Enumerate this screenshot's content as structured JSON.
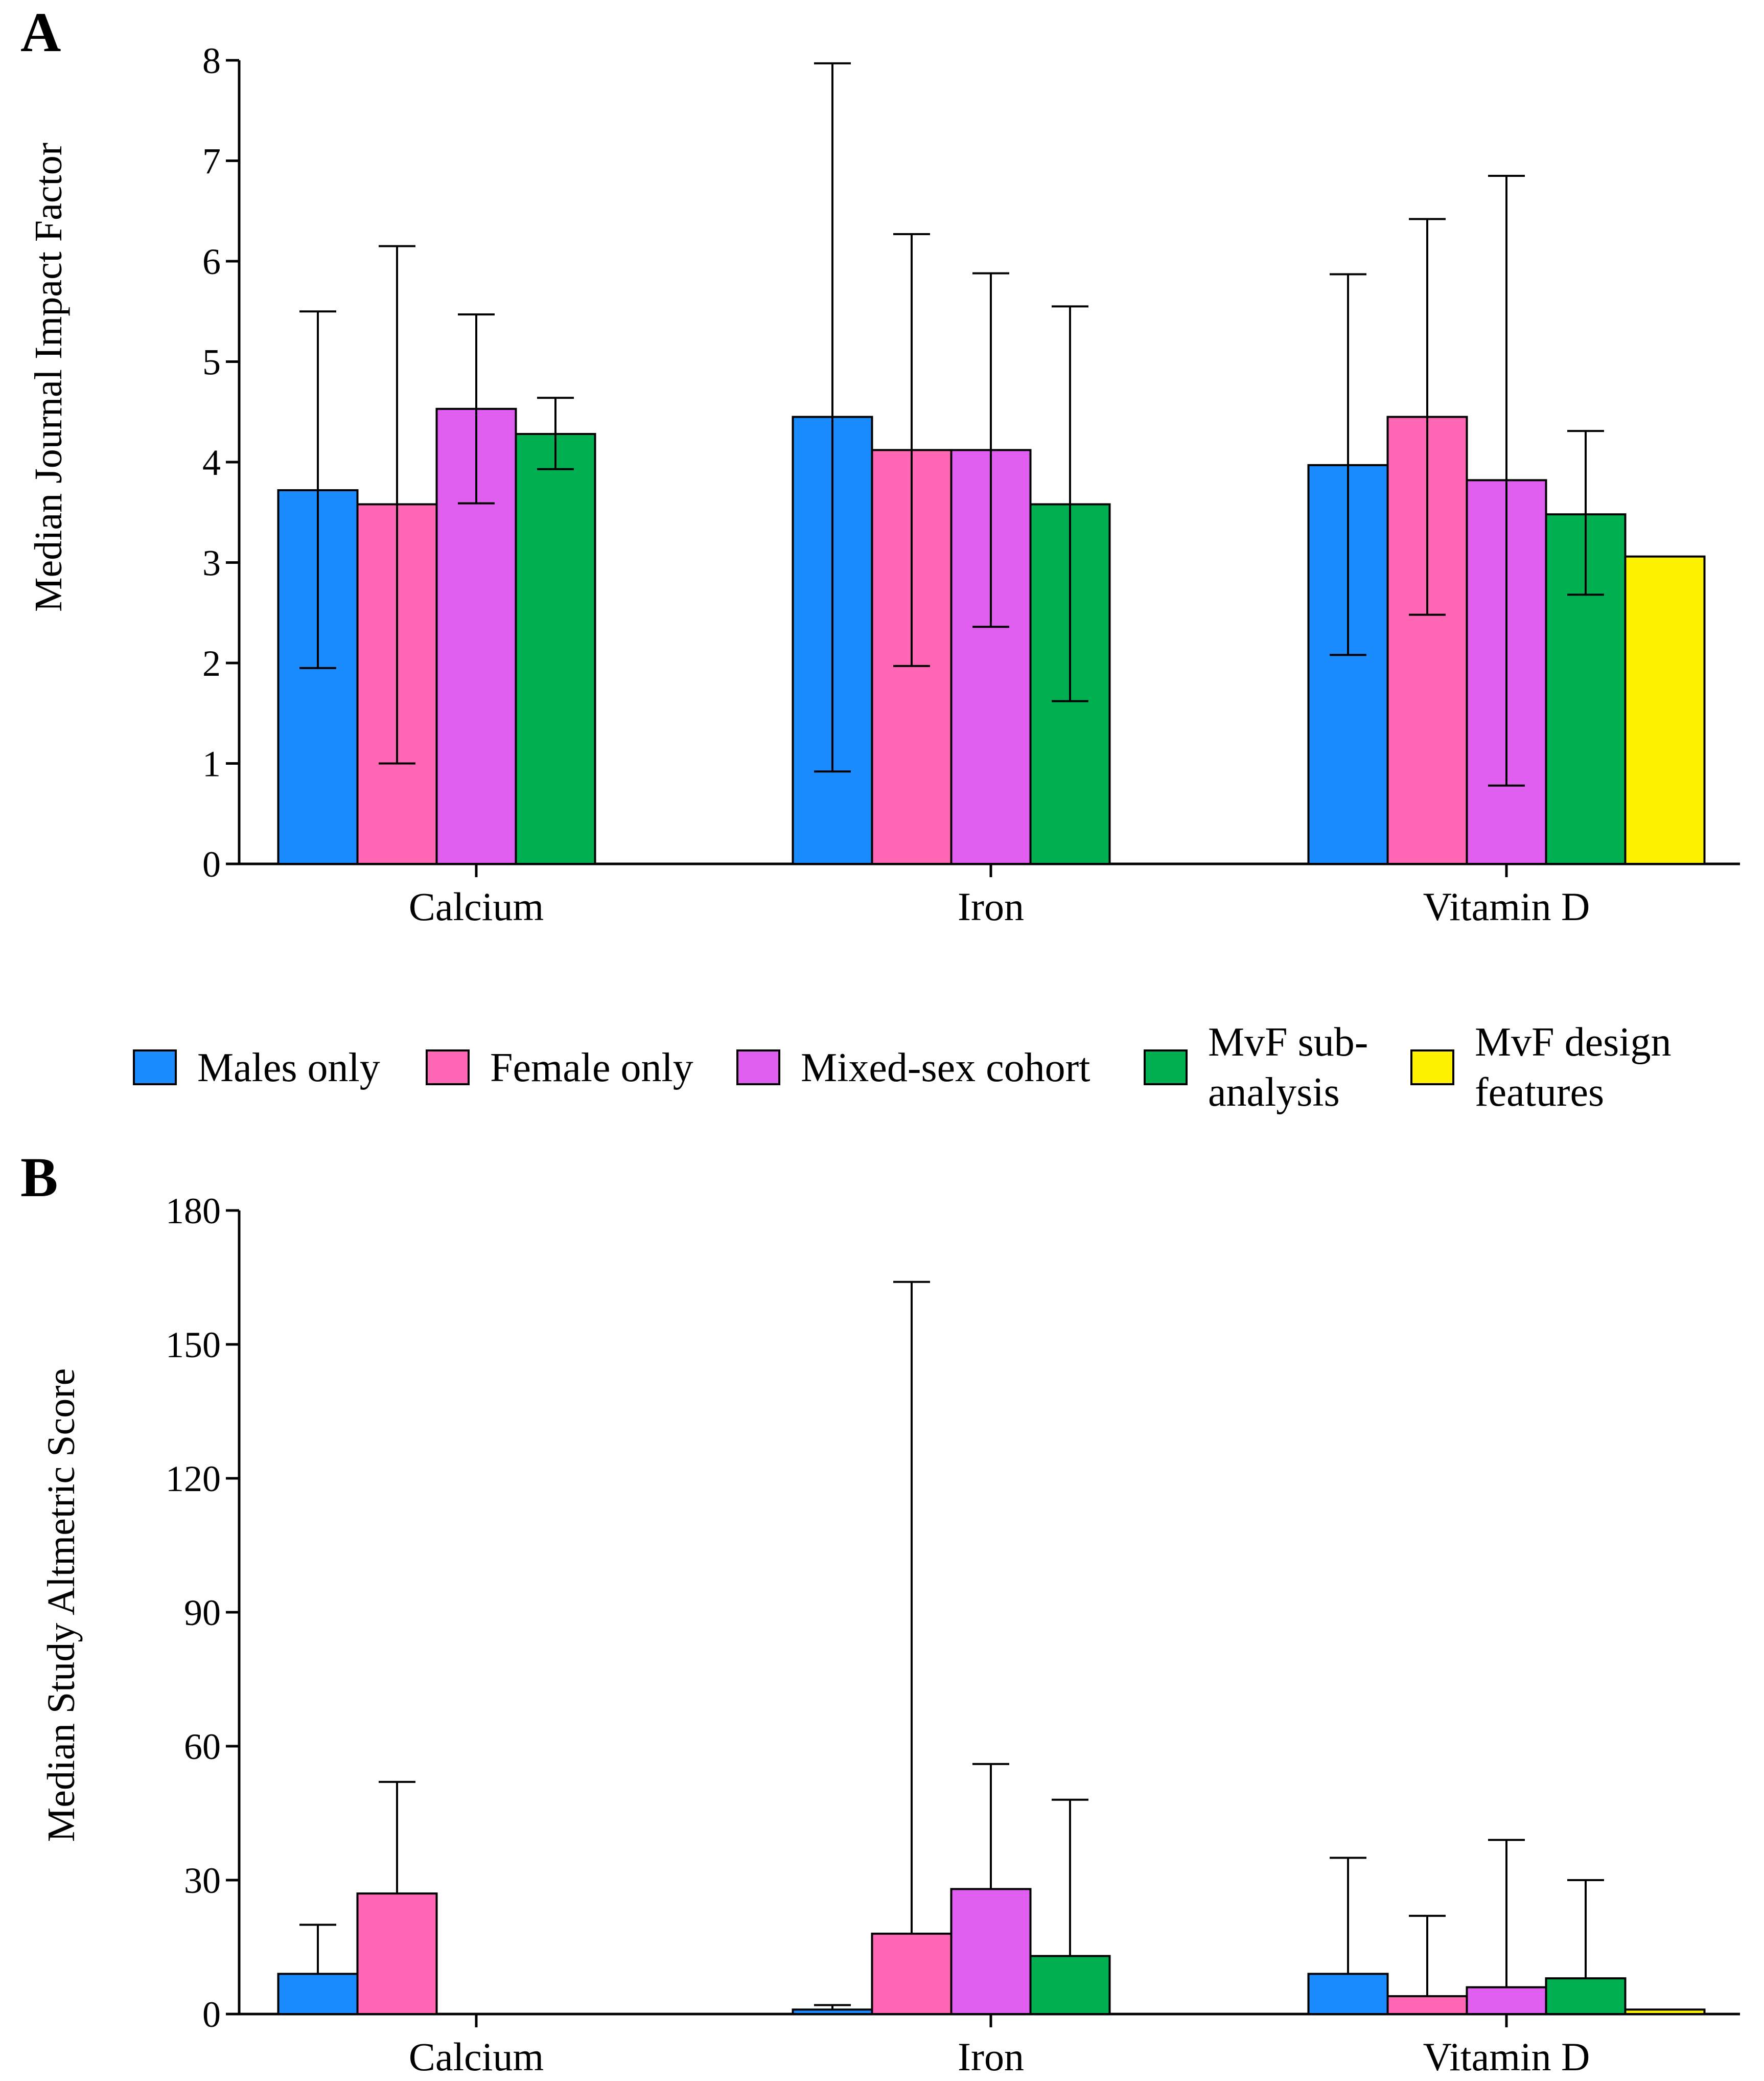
{
  "legend": [
    {
      "lines": [
        "Males only"
      ],
      "color": "#1a8cff"
    },
    {
      "lines": [
        "Female only"
      ],
      "color": "#ff66b3"
    },
    {
      "lines": [
        "Mixed-sex cohort"
      ],
      "color": "#e05ef0"
    },
    {
      "lines": [
        "MvF sub-",
        "analysis"
      ],
      "color": "#00b050"
    },
    {
      "lines": [
        "MvF design",
        "features"
      ],
      "color": "#fff200"
    }
  ],
  "chart_data": [
    {
      "type": "bar",
      "panel": "A",
      "title": "",
      "xlabel": "",
      "ylabel": "Median Journal Impact Factor",
      "ylim": [
        0,
        8
      ],
      "yticks": [
        0,
        1,
        2,
        3,
        4,
        5,
        6,
        7,
        8
      ],
      "categories": [
        "Calcium",
        "Iron",
        "Vitamin D"
      ],
      "series": [
        {
          "name": "Males only",
          "values": [
            3.72,
            4.45,
            3.97
          ],
          "err_low": [
            1.95,
            0.92,
            2.08
          ],
          "err_high": [
            5.5,
            7.97,
            5.87
          ]
        },
        {
          "name": "Female only",
          "values": [
            3.58,
            4.12,
            4.45
          ],
          "err_low": [
            1.0,
            1.97,
            2.48
          ],
          "err_high": [
            6.15,
            6.27,
            6.42
          ]
        },
        {
          "name": "Mixed-sex cohort",
          "values": [
            4.53,
            4.12,
            3.82
          ],
          "err_low": [
            3.59,
            2.36,
            0.78
          ],
          "err_high": [
            5.47,
            5.88,
            6.85
          ]
        },
        {
          "name": "MvF sub-analysis",
          "values": [
            4.28,
            3.58,
            3.48
          ],
          "err_low": [
            3.93,
            1.62,
            2.68
          ],
          "err_high": [
            4.64,
            5.55,
            4.31
          ]
        },
        {
          "name": "MvF design features",
          "values": [
            null,
            null,
            3.06
          ],
          "err_low": [
            null,
            null,
            null
          ],
          "err_high": [
            null,
            null,
            null
          ]
        }
      ]
    },
    {
      "type": "bar",
      "panel": "B",
      "title": "",
      "xlabel": "",
      "ylabel": "Median Study Altmetric Score",
      "ylim": [
        0,
        180
      ],
      "yticks": [
        0,
        30,
        60,
        90,
        120,
        150,
        180
      ],
      "categories": [
        "Calcium",
        "Iron",
        "Vitamin D"
      ],
      "series": [
        {
          "name": "Males only",
          "values": [
            9,
            1,
            9
          ],
          "err_low": [
            null,
            null,
            null
          ],
          "err_high": [
            20,
            2,
            35
          ]
        },
        {
          "name": "Female only",
          "values": [
            27,
            18,
            4
          ],
          "err_low": [
            null,
            null,
            null
          ],
          "err_high": [
            52,
            164,
            22
          ]
        },
        {
          "name": "Mixed-sex cohort",
          "values": [
            null,
            28,
            6
          ],
          "err_low": [
            null,
            null,
            null
          ],
          "err_high": [
            null,
            56,
            39
          ]
        },
        {
          "name": "MvF sub-analysis",
          "values": [
            null,
            13,
            8
          ],
          "err_low": [
            null,
            null,
            null
          ],
          "err_high": [
            null,
            48,
            30
          ]
        },
        {
          "name": "MvF design features",
          "values": [
            null,
            null,
            1
          ],
          "err_low": [
            null,
            null,
            null
          ],
          "err_high": [
            null,
            null,
            null
          ]
        }
      ]
    }
  ]
}
